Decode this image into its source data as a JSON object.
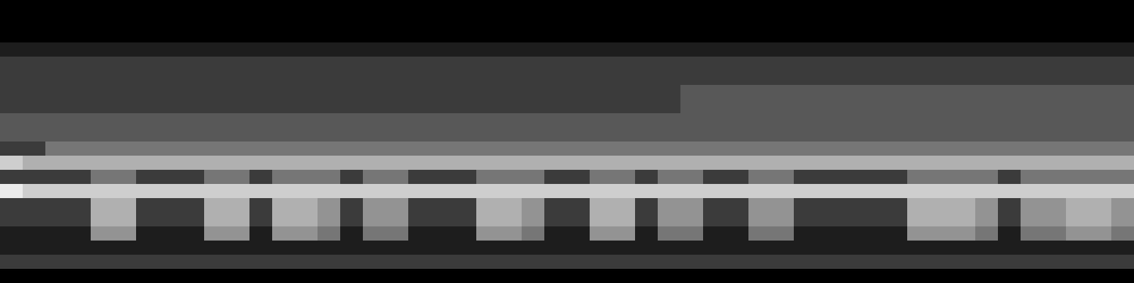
{
  "chart_data": {
    "type": "heatmap",
    "tick_labels": false,
    "zlim": [
      0,
      8
    ],
    "cells": [
      [
        0,
        0,
        0,
        0,
        0,
        0,
        0,
        0,
        0,
        0,
        0,
        0,
        0,
        0,
        0,
        0,
        0,
        0,
        0,
        0,
        0,
        0,
        0,
        0,
        0,
        0,
        0,
        0,
        0,
        0,
        0,
        0,
        0,
        0,
        0,
        0,
        0,
        0,
        0,
        0,
        0,
        0,
        0,
        0,
        0,
        0,
        0,
        0,
        0,
        0
      ],
      [
        0,
        0,
        0,
        0,
        0,
        0,
        0,
        0,
        0,
        0,
        0,
        0,
        0,
        0,
        0,
        0,
        0,
        0,
        0,
        0,
        0,
        0,
        0,
        0,
        0,
        0,
        0,
        0,
        0,
        0,
        0,
        0,
        0,
        0,
        0,
        0,
        0,
        0,
        0,
        0,
        0,
        0,
        0,
        0,
        0,
        0,
        0,
        0,
        0,
        0
      ],
      [
        0,
        0,
        0,
        0,
        0,
        0,
        0,
        0,
        0,
        0,
        0,
        0,
        0,
        0,
        0,
        0,
        0,
        0,
        0,
        0,
        0,
        0,
        0,
        0,
        0,
        0,
        0,
        0,
        0,
        0,
        0,
        0,
        0,
        0,
        0,
        0,
        0,
        0,
        0,
        0,
        0,
        0,
        0,
        0,
        0,
        0,
        0,
        0,
        0,
        0
      ],
      [
        1,
        1,
        1,
        1,
        1,
        1,
        1,
        1,
        1,
        1,
        1,
        1,
        1,
        1,
        1,
        1,
        1,
        1,
        1,
        1,
        1,
        1,
        1,
        1,
        1,
        1,
        1,
        1,
        1,
        1,
        1,
        1,
        1,
        1,
        1,
        1,
        1,
        1,
        1,
        1,
        1,
        1,
        1,
        1,
        1,
        1,
        1,
        1,
        1,
        1
      ],
      [
        2,
        2,
        2,
        2,
        2,
        2,
        2,
        2,
        2,
        2,
        2,
        2,
        2,
        2,
        2,
        2,
        2,
        2,
        2,
        2,
        2,
        2,
        2,
        2,
        2,
        2,
        2,
        2,
        2,
        2,
        2,
        2,
        2,
        2,
        2,
        2,
        2,
        2,
        2,
        2,
        2,
        2,
        2,
        2,
        2,
        2,
        2,
        2,
        2,
        2
      ],
      [
        2,
        2,
        2,
        2,
        2,
        2,
        2,
        2,
        2,
        2,
        2,
        2,
        2,
        2,
        2,
        2,
        2,
        2,
        2,
        2,
        2,
        2,
        2,
        2,
        2,
        2,
        2,
        2,
        2,
        2,
        2,
        2,
        2,
        2,
        2,
        2,
        2,
        2,
        2,
        2,
        2,
        2,
        2,
        2,
        2,
        2,
        2,
        2,
        2,
        2
      ],
      [
        2,
        2,
        2,
        2,
        2,
        2,
        2,
        2,
        2,
        2,
        2,
        2,
        2,
        2,
        2,
        2,
        2,
        2,
        2,
        2,
        2,
        2,
        2,
        2,
        2,
        2,
        2,
        2,
        2,
        2,
        3,
        3,
        3,
        3,
        3,
        3,
        3,
        3,
        3,
        3,
        3,
        3,
        3,
        3,
        3,
        3,
        3,
        3,
        3,
        3
      ],
      [
        2,
        2,
        2,
        2,
        2,
        2,
        2,
        2,
        2,
        2,
        2,
        2,
        2,
        2,
        2,
        2,
        2,
        2,
        2,
        2,
        2,
        2,
        2,
        2,
        2,
        2,
        2,
        2,
        2,
        2,
        3,
        3,
        3,
        3,
        3,
        3,
        3,
        3,
        3,
        3,
        3,
        3,
        3,
        3,
        3,
        3,
        3,
        3,
        3,
        3
      ],
      [
        3,
        3,
        3,
        3,
        3,
        3,
        3,
        3,
        3,
        3,
        3,
        3,
        3,
        3,
        3,
        3,
        3,
        3,
        3,
        3,
        3,
        3,
        3,
        3,
        3,
        3,
        3,
        3,
        3,
        3,
        3,
        3,
        3,
        3,
        3,
        3,
        3,
        3,
        3,
        3,
        3,
        3,
        3,
        3,
        3,
        3,
        3,
        3,
        3,
        3
      ],
      [
        3,
        3,
        3,
        3,
        3,
        3,
        3,
        3,
        3,
        3,
        3,
        3,
        3,
        3,
        3,
        3,
        3,
        3,
        3,
        3,
        3,
        3,
        3,
        3,
        3,
        3,
        3,
        3,
        3,
        3,
        3,
        3,
        3,
        3,
        3,
        3,
        3,
        3,
        3,
        3,
        3,
        3,
        3,
        3,
        3,
        3,
        3,
        3,
        3,
        3
      ],
      [
        2,
        2,
        4,
        4,
        4,
        4,
        4,
        4,
        4,
        4,
        4,
        4,
        4,
        4,
        4,
        4,
        4,
        4,
        4,
        4,
        4,
        4,
        4,
        4,
        4,
        4,
        4,
        4,
        4,
        4,
        4,
        4,
        4,
        4,
        4,
        4,
        4,
        4,
        4,
        4,
        4,
        4,
        4,
        4,
        4,
        4,
        4,
        4,
        4,
        4
      ],
      [
        7,
        6,
        6,
        6,
        6,
        6,
        6,
        6,
        6,
        6,
        6,
        6,
        6,
        6,
        6,
        6,
        6,
        6,
        6,
        6,
        6,
        6,
        6,
        6,
        6,
        6,
        6,
        6,
        6,
        6,
        6,
        6,
        6,
        6,
        6,
        6,
        6,
        6,
        6,
        6,
        6,
        6,
        6,
        6,
        6,
        6,
        6,
        6,
        6,
        6
      ],
      [
        2,
        2,
        2,
        2,
        4,
        4,
        2,
        2,
        2,
        4,
        4,
        2,
        4,
        4,
        4,
        2,
        4,
        4,
        2,
        2,
        2,
        4,
        4,
        4,
        2,
        2,
        4,
        4,
        2,
        4,
        4,
        2,
        2,
        4,
        4,
        2,
        2,
        2,
        2,
        2,
        4,
        4,
        4,
        4,
        2,
        4,
        4,
        4,
        4,
        4
      ],
      [
        8,
        7,
        7,
        7,
        7,
        7,
        7,
        7,
        7,
        7,
        7,
        7,
        7,
        7,
        7,
        7,
        7,
        7,
        7,
        7,
        7,
        7,
        7,
        7,
        7,
        7,
        7,
        7,
        7,
        7,
        7,
        7,
        7,
        7,
        7,
        7,
        7,
        7,
        7,
        7,
        7,
        7,
        7,
        7,
        7,
        7,
        7,
        7,
        7,
        7
      ],
      [
        2,
        2,
        2,
        2,
        6,
        6,
        2,
        2,
        2,
        6,
        6,
        2,
        6,
        6,
        5,
        2,
        5,
        5,
        2,
        2,
        2,
        6,
        6,
        5,
        2,
        2,
        6,
        6,
        2,
        5,
        5,
        2,
        2,
        5,
        5,
        2,
        2,
        2,
        2,
        2,
        6,
        6,
        6,
        5,
        2,
        5,
        5,
        6,
        6,
        5
      ],
      [
        2,
        2,
        2,
        2,
        6,
        6,
        2,
        2,
        2,
        6,
        6,
        2,
        6,
        6,
        5,
        2,
        5,
        5,
        2,
        2,
        2,
        6,
        6,
        5,
        2,
        2,
        6,
        6,
        2,
        5,
        5,
        2,
        2,
        5,
        5,
        2,
        2,
        2,
        2,
        2,
        6,
        6,
        6,
        5,
        2,
        5,
        5,
        6,
        6,
        5
      ],
      [
        1,
        1,
        1,
        1,
        5,
        5,
        1,
        1,
        1,
        5,
        5,
        1,
        5,
        5,
        4,
        1,
        4,
        4,
        1,
        1,
        1,
        5,
        5,
        4,
        1,
        1,
        5,
        5,
        1,
        4,
        4,
        1,
        1,
        4,
        4,
        1,
        1,
        1,
        1,
        1,
        5,
        5,
        5,
        4,
        1,
        4,
        4,
        5,
        5,
        4
      ],
      [
        1,
        1,
        1,
        1,
        1,
        1,
        1,
        1,
        1,
        1,
        1,
        1,
        1,
        1,
        1,
        1,
        1,
        1,
        1,
        1,
        1,
        1,
        1,
        1,
        1,
        1,
        1,
        1,
        1,
        1,
        1,
        1,
        1,
        1,
        1,
        1,
        1,
        1,
        1,
        1,
        1,
        1,
        1,
        1,
        1,
        1,
        1,
        1,
        1,
        1
      ],
      [
        2,
        2,
        2,
        2,
        2,
        2,
        2,
        2,
        2,
        2,
        2,
        2,
        2,
        2,
        2,
        2,
        2,
        2,
        2,
        2,
        2,
        2,
        2,
        2,
        2,
        2,
        2,
        2,
        2,
        2,
        2,
        2,
        2,
        2,
        2,
        2,
        2,
        2,
        2,
        2,
        2,
        2,
        2,
        2,
        2,
        2,
        2,
        2,
        2,
        2
      ],
      [
        0,
        0,
        0,
        0,
        0,
        0,
        0,
        0,
        0,
        0,
        0,
        0,
        0,
        0,
        0,
        0,
        0,
        0,
        0,
        0,
        0,
        0,
        0,
        0,
        0,
        0,
        0,
        0,
        0,
        0,
        0,
        0,
        0,
        0,
        0,
        0,
        0,
        0,
        0,
        0,
        0,
        0,
        0,
        0,
        0,
        0,
        0,
        0,
        0,
        0
      ]
    ]
  }
}
